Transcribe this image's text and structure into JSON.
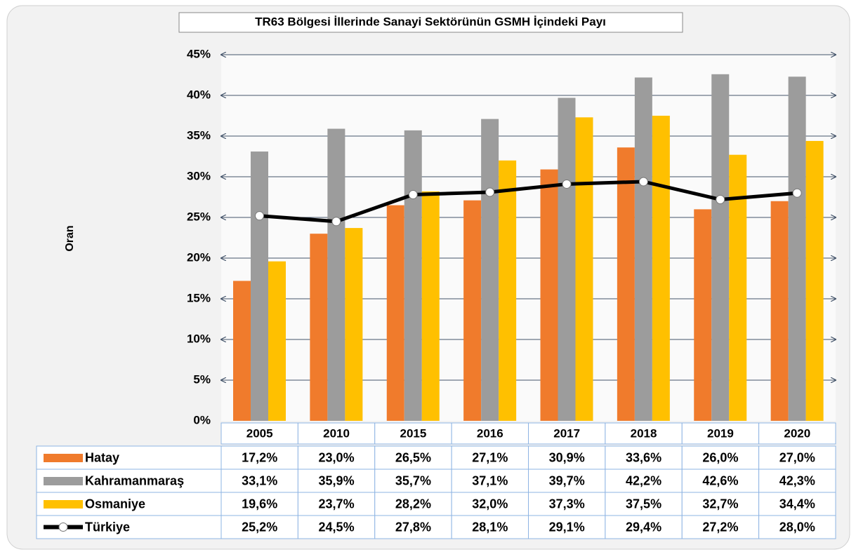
{
  "chart_data": {
    "type": "bar",
    "title": "TR63 Bölgesi İllerinde Sanayi Sektörünün GSMH İçindeki Payı",
    "y_label": "Oran",
    "categories": [
      "2005",
      "2010",
      "2015",
      "2016",
      "2017",
      "2018",
      "2019",
      "2020"
    ],
    "series": [
      {
        "name": "Hatay",
        "color": "#f07b2c",
        "values": [
          17.2,
          23.0,
          26.5,
          27.1,
          30.9,
          33.6,
          26.0,
          27.0
        ],
        "value_labels": [
          "17,2%",
          "23,0%",
          "26,5%",
          "27,1%",
          "30,9%",
          "33,6%",
          "26,0%",
          "27,0%"
        ]
      },
      {
        "name": "Kahramanmaraş",
        "color": "#9c9c9c",
        "values": [
          33.1,
          35.9,
          35.7,
          37.1,
          39.7,
          42.2,
          42.6,
          42.3
        ],
        "value_labels": [
          "33,1%",
          "35,9%",
          "35,7%",
          "37,1%",
          "39,7%",
          "42,2%",
          "42,6%",
          "42,3%"
        ]
      },
      {
        "name": "Osmaniye",
        "color": "#ffc000",
        "values": [
          19.6,
          23.7,
          28.2,
          32.0,
          37.3,
          37.5,
          32.7,
          34.4
        ],
        "value_labels": [
          "19,6%",
          "23,7%",
          "28,2%",
          "32,0%",
          "37,3%",
          "37,5%",
          "32,7%",
          "34,4%"
        ]
      },
      {
        "name": "Türkiye",
        "type": "line",
        "color": "#000000",
        "values": [
          25.2,
          24.5,
          27.8,
          28.1,
          29.1,
          29.4,
          27.2,
          28.0
        ],
        "value_labels": [
          "25,2%",
          "24,5%",
          "27,8%",
          "28,1%",
          "29,1%",
          "29,4%",
          "27,2%",
          "28,0%"
        ]
      }
    ],
    "ylim": [
      0,
      45
    ],
    "yticks": [
      {
        "value": 0,
        "label": "0%"
      },
      {
        "value": 5,
        "label": "5%"
      },
      {
        "value": 10,
        "label": "10%"
      },
      {
        "value": 15,
        "label": "15%"
      },
      {
        "value": 20,
        "label": "20%"
      },
      {
        "value": 25,
        "label": "25%"
      },
      {
        "value": 30,
        "label": "30%"
      },
      {
        "value": 35,
        "label": "35%"
      },
      {
        "value": 40,
        "label": "40%"
      },
      {
        "value": 45,
        "label": "45%"
      }
    ],
    "grid": true
  }
}
